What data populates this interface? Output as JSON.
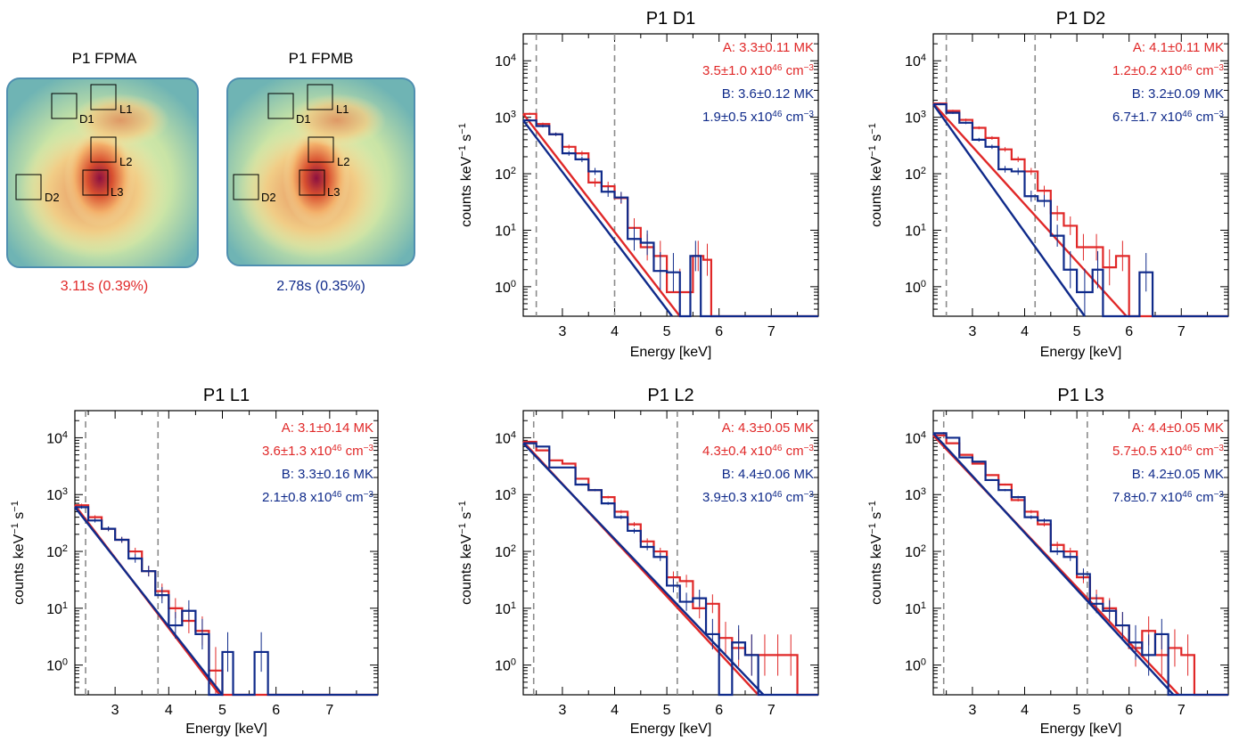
{
  "colors": {
    "fpma": "#e02828",
    "fpmb": "#0f2a8a",
    "frame": "#000000",
    "guide": "#8c8c8c"
  },
  "images": [
    {
      "title": "P1 FPMA",
      "caption": "3.11s (0.39%)",
      "color": "#e02828",
      "boxes": [
        "D1",
        "L1",
        "L2",
        "L3",
        "D2"
      ]
    },
    {
      "title": "P1 FPMB",
      "caption": "2.78s (0.35%)",
      "color": "#0f2a8a",
      "boxes": [
        "D1",
        "L1",
        "L2",
        "L3",
        "D2"
      ]
    }
  ],
  "chart_data": [
    {
      "id": "d1",
      "type": "line",
      "title": "P1 D1",
      "xlabel": "Energy [keV]",
      "xlim": [
        2.25,
        7.9
      ],
      "ylim": [
        0.3,
        30000
      ],
      "yscale": "log",
      "xticks": [
        "3",
        "4",
        "5",
        "6",
        "7"
      ],
      "yticks": [
        1,
        10,
        100,
        1000,
        10000
      ],
      "guides": [
        2.5,
        4.0
      ],
      "annotations": {
        "a_temp": "A:  3.3±0.11 MK",
        "a_em": "3.5±1.0 x10",
        "b_temp": "B:  3.6±0.12 MK",
        "b_em": "1.9±0.5 x10"
      },
      "series": [
        {
          "name": "A",
          "color": "#e02828",
          "fit": {
            "x0": 2.25,
            "y0": 1150,
            "x1": 5.25,
            "y1": 0.3
          },
          "bins": [
            [
              2.25,
              1150
            ],
            [
              2.5,
              760
            ],
            [
              2.75,
              500
            ],
            [
              3.0,
              300
            ],
            [
              3.25,
              230
            ],
            [
              3.5,
              70
            ],
            [
              3.75,
              60
            ],
            [
              4.0,
              37
            ],
            [
              4.25,
              11
            ],
            [
              4.5,
              5
            ],
            [
              4.75,
              3.5
            ],
            [
              5.0,
              0.8
            ],
            [
              5.5,
              3.5
            ],
            [
              5.7,
              3.0
            ],
            [
              5.85,
              0.3
            ],
            [
              7.9,
              0.3
            ]
          ]
        },
        {
          "name": "B",
          "color": "#0f2a8a",
          "fit": {
            "x0": 2.25,
            "y0": 880,
            "x1": 5.1,
            "y1": 0.3
          },
          "bins": [
            [
              2.25,
              880
            ],
            [
              2.5,
              700
            ],
            [
              2.75,
              500
            ],
            [
              3.0,
              230
            ],
            [
              3.25,
              180
            ],
            [
              3.5,
              110
            ],
            [
              3.75,
              48
            ],
            [
              4.0,
              38
            ],
            [
              4.25,
              7
            ],
            [
              4.5,
              6
            ],
            [
              4.75,
              1.9
            ],
            [
              5.0,
              1.8
            ],
            [
              5.25,
              0.3
            ],
            [
              5.45,
              3.5
            ],
            [
              5.65,
              0.3
            ],
            [
              7.9,
              0.3
            ]
          ]
        }
      ]
    },
    {
      "id": "d2",
      "type": "line",
      "title": "P1 D2",
      "xlabel": "Energy [keV]",
      "xlim": [
        2.25,
        7.9
      ],
      "ylim": [
        0.3,
        30000
      ],
      "yscale": "log",
      "xticks": [
        "3",
        "4",
        "5",
        "6",
        "7"
      ],
      "yticks": [
        1,
        10,
        100,
        1000,
        10000
      ],
      "guides": [
        2.5,
        4.2
      ],
      "annotations": {
        "a_temp": "A:  4.1±0.11 MK",
        "a_em": "1.2±0.2 x10",
        "b_temp": "B:  3.2±0.09 MK",
        "b_em": "6.7±1.7 x10"
      },
      "series": [
        {
          "name": "A",
          "color": "#e02828",
          "fit": {
            "x0": 2.25,
            "y0": 1750,
            "x1": 5.95,
            "y1": 0.3
          },
          "bins": [
            [
              2.25,
              1750
            ],
            [
              2.5,
              1300
            ],
            [
              2.75,
              900
            ],
            [
              3.0,
              650
            ],
            [
              3.25,
              430
            ],
            [
              3.5,
              270
            ],
            [
              3.75,
              180
            ],
            [
              4.0,
              110
            ],
            [
              4.25,
              50
            ],
            [
              4.5,
              20
            ],
            [
              4.75,
              12
            ],
            [
              5.0,
              5
            ],
            [
              5.25,
              5
            ],
            [
              5.5,
              2.2
            ],
            [
              5.75,
              3.5
            ],
            [
              6.0,
              0.3
            ],
            [
              7.9,
              0.3
            ]
          ]
        },
        {
          "name": "B",
          "color": "#0f2a8a",
          "fit": {
            "x0": 2.25,
            "y0": 1700,
            "x1": 5.15,
            "y1": 0.3
          },
          "bins": [
            [
              2.25,
              1700
            ],
            [
              2.5,
              1200
            ],
            [
              2.75,
              800
            ],
            [
              3.0,
              400
            ],
            [
              3.25,
              300
            ],
            [
              3.5,
              120
            ],
            [
              3.75,
              110
            ],
            [
              4.0,
              40
            ],
            [
              4.25,
              33
            ],
            [
              4.5,
              8
            ],
            [
              4.75,
              2
            ],
            [
              5.0,
              0.8
            ],
            [
              5.3,
              2.0
            ],
            [
              5.5,
              0.3
            ],
            [
              6.2,
              1.8
            ],
            [
              6.45,
              0.3
            ],
            [
              7.9,
              0.3
            ]
          ]
        }
      ]
    },
    {
      "id": "l1",
      "type": "line",
      "title": "P1 L1",
      "xlabel": "Energy [keV]",
      "xlim": [
        2.25,
        7.9
      ],
      "ylim": [
        0.3,
        30000
      ],
      "yscale": "log",
      "xticks": [
        "3",
        "4",
        "5",
        "6",
        "7"
      ],
      "yticks": [
        1,
        10,
        100,
        1000,
        10000
      ],
      "guides": [
        2.45,
        3.8
      ],
      "annotations": {
        "a_temp": "A:  3.1±0.14 MK",
        "a_em": "3.6±1.3 x10",
        "b_temp": "B:  3.3±0.16 MK",
        "b_em": "2.1±0.8 x10"
      },
      "series": [
        {
          "name": "A",
          "color": "#e02828",
          "fit": {
            "x0": 2.25,
            "y0": 650,
            "x1": 4.95,
            "y1": 0.3
          },
          "bins": [
            [
              2.25,
              650
            ],
            [
              2.5,
              400
            ],
            [
              2.75,
              250
            ],
            [
              3.0,
              160
            ],
            [
              3.25,
              100
            ],
            [
              3.5,
              45
            ],
            [
              3.75,
              20
            ],
            [
              4.0,
              10
            ],
            [
              4.25,
              6
            ],
            [
              4.5,
              4
            ],
            [
              4.75,
              0.8
            ],
            [
              5.0,
              0.3
            ],
            [
              7.9,
              0.3
            ]
          ]
        },
        {
          "name": "B",
          "color": "#0f2a8a",
          "fit": {
            "x0": 2.25,
            "y0": 600,
            "x1": 5.0,
            "y1": 0.3
          },
          "bins": [
            [
              2.25,
              600
            ],
            [
              2.5,
              350
            ],
            [
              2.75,
              250
            ],
            [
              3.0,
              160
            ],
            [
              3.25,
              75
            ],
            [
              3.5,
              45
            ],
            [
              3.75,
              17
            ],
            [
              4.0,
              5
            ],
            [
              4.25,
              9
            ],
            [
              4.5,
              3.5
            ],
            [
              4.75,
              0.3
            ],
            [
              5.0,
              1.7
            ],
            [
              5.2,
              0.3
            ],
            [
              5.6,
              1.7
            ],
            [
              5.85,
              0.3
            ],
            [
              7.9,
              0.3
            ]
          ]
        }
      ]
    },
    {
      "id": "l2",
      "type": "line",
      "title": "P1 L2",
      "xlabel": "Energy [keV]",
      "xlim": [
        2.25,
        7.9
      ],
      "ylim": [
        0.3,
        30000
      ],
      "yscale": "log",
      "xticks": [
        "3",
        "4",
        "5",
        "6",
        "7"
      ],
      "yticks": [
        1,
        10,
        100,
        1000,
        10000
      ],
      "guides": [
        2.45,
        5.2
      ],
      "annotations": {
        "a_temp": "A:  4.3±0.05 MK",
        "a_em": "4.3±0.4 x10",
        "b_temp": "B:  4.4±0.06 MK",
        "b_em": "3.9±0.3 x10"
      },
      "series": [
        {
          "name": "A",
          "color": "#e02828",
          "fit": {
            "x0": 2.25,
            "y0": 8500,
            "x1": 6.75,
            "y1": 0.3
          },
          "bins": [
            [
              2.25,
              8500
            ],
            [
              2.5,
              6000
            ],
            [
              2.75,
              4000
            ],
            [
              3.0,
              3500
            ],
            [
              3.25,
              1900
            ],
            [
              3.5,
              1200
            ],
            [
              3.75,
              900
            ],
            [
              4.0,
              500
            ],
            [
              4.25,
              300
            ],
            [
              4.5,
              150
            ],
            [
              4.75,
              100
            ],
            [
              5.0,
              35
            ],
            [
              5.25,
              30
            ],
            [
              5.5,
              10
            ],
            [
              5.75,
              12
            ],
            [
              6.0,
              3
            ],
            [
              6.25,
              2
            ],
            [
              6.5,
              1.5
            ],
            [
              6.75,
              1.5
            ],
            [
              7.0,
              1.5
            ],
            [
              7.25,
              1.5
            ],
            [
              7.5,
              0.3
            ],
            [
              7.9,
              0.3
            ]
          ]
        },
        {
          "name": "B",
          "color": "#0f2a8a",
          "fit": {
            "x0": 2.25,
            "y0": 8000,
            "x1": 6.85,
            "y1": 0.3
          },
          "bins": [
            [
              2.25,
              8000
            ],
            [
              2.5,
              7000
            ],
            [
              2.75,
              3000
            ],
            [
              3.0,
              3000
            ],
            [
              3.25,
              1500
            ],
            [
              3.5,
              1200
            ],
            [
              3.75,
              700
            ],
            [
              4.0,
              400
            ],
            [
              4.25,
              230
            ],
            [
              4.5,
              120
            ],
            [
              4.75,
              80
            ],
            [
              5.0,
              25
            ],
            [
              5.25,
              13
            ],
            [
              5.5,
              15
            ],
            [
              5.75,
              3.5
            ],
            [
              6.0,
              0.3
            ],
            [
              6.25,
              2.5
            ],
            [
              6.5,
              1.5
            ],
            [
              6.75,
              0.3
            ],
            [
              7.9,
              0.3
            ]
          ]
        }
      ]
    },
    {
      "id": "l3",
      "type": "line",
      "title": "P1 L3",
      "xlabel": "Energy [keV]",
      "xlim": [
        2.25,
        7.9
      ],
      "ylim": [
        0.3,
        30000
      ],
      "yscale": "log",
      "xticks": [
        "3",
        "4",
        "5",
        "6",
        "7"
      ],
      "yticks": [
        1,
        10,
        100,
        1000,
        10000
      ],
      "guides": [
        2.45,
        5.2
      ],
      "annotations": {
        "a_temp": "A:  4.4±0.05 MK",
        "a_em": "5.7±0.5 x10",
        "b_temp": "B:  4.2±0.05 MK",
        "b_em": "7.8±0.7 x10"
      },
      "series": [
        {
          "name": "A",
          "color": "#e02828",
          "fit": {
            "x0": 2.25,
            "y0": 11000,
            "x1": 6.95,
            "y1": 0.3
          },
          "bins": [
            [
              2.25,
              11000
            ],
            [
              2.5,
              8000
            ],
            [
              2.75,
              5000
            ],
            [
              3.0,
              3500
            ],
            [
              3.25,
              2200
            ],
            [
              3.5,
              1500
            ],
            [
              3.75,
              800
            ],
            [
              4.0,
              500
            ],
            [
              4.25,
              300
            ],
            [
              4.5,
              130
            ],
            [
              4.75,
              100
            ],
            [
              5.0,
              35
            ],
            [
              5.25,
              15
            ],
            [
              5.5,
              10
            ],
            [
              5.75,
              5
            ],
            [
              6.0,
              2
            ],
            [
              6.25,
              4
            ],
            [
              6.5,
              1.5
            ],
            [
              6.75,
              2
            ],
            [
              7.0,
              1.5
            ],
            [
              7.25,
              0.3
            ],
            [
              7.9,
              0.3
            ]
          ]
        },
        {
          "name": "B",
          "color": "#0f2a8a",
          "fit": {
            "x0": 2.25,
            "y0": 12000,
            "x1": 6.85,
            "y1": 0.3
          },
          "bins": [
            [
              2.25,
              12000
            ],
            [
              2.5,
              10000
            ],
            [
              2.75,
              4500
            ],
            [
              3.0,
              3800
            ],
            [
              3.25,
              1800
            ],
            [
              3.5,
              1200
            ],
            [
              3.75,
              900
            ],
            [
              4.0,
              400
            ],
            [
              4.25,
              350
            ],
            [
              4.5,
              100
            ],
            [
              4.75,
              80
            ],
            [
              5.0,
              40
            ],
            [
              5.25,
              12
            ],
            [
              5.5,
              9
            ],
            [
              5.75,
              5
            ],
            [
              6.0,
              2.5
            ],
            [
              6.25,
              1.5
            ],
            [
              6.5,
              3.5
            ],
            [
              6.75,
              0.3
            ],
            [
              7.9,
              0.3
            ]
          ]
        }
      ]
    }
  ]
}
